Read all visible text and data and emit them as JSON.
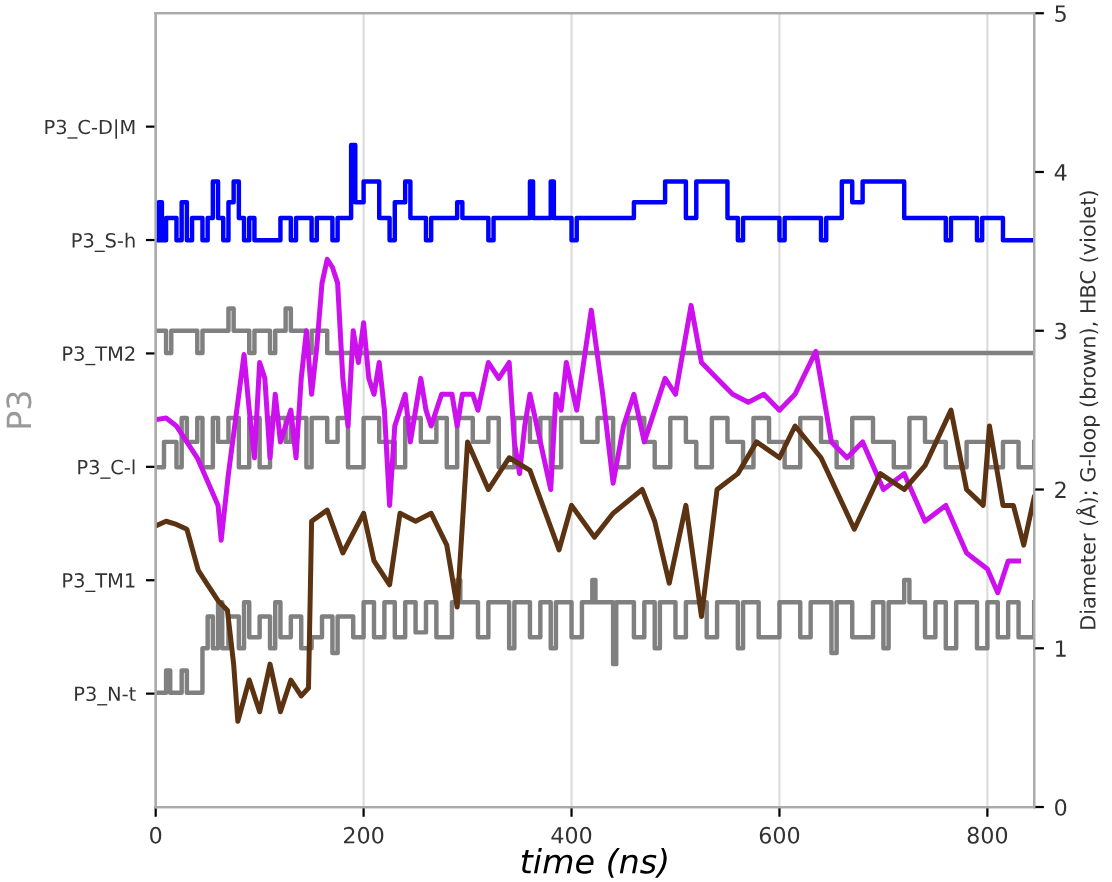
{
  "chart_data": {
    "type": "line",
    "xlabel": "time (ns)",
    "ylabel": "P3",
    "y2label": "Diameter (Å); G-loop (brown), HBC (violet)",
    "xlim": [
      0,
      845
    ],
    "xticks": [
      0,
      200,
      400,
      600,
      800
    ],
    "annotations": [
      "P3_N-t",
      "P3_TM1",
      "P3_C-l",
      "P3_TM2",
      "P3_S-h",
      "P3_C-D|M"
    ],
    "y2lim": [
      0,
      5
    ],
    "y2ticks": [
      0,
      1,
      2,
      3,
      4,
      5
    ],
    "grid": "x",
    "legend": false,
    "series": [
      {
        "type": "step",
        "axis": "y2",
        "color": "#808080",
        "x": [
          0,
          10,
          14,
          25,
          30,
          45,
          50,
          55,
          60,
          64,
          70,
          80,
          85,
          90,
          100,
          110,
          115,
          120,
          130,
          140,
          150,
          160,
          170,
          175,
          190,
          200,
          210,
          220,
          230,
          240,
          250,
          260,
          270,
          285,
          290,
          293,
          310,
          320,
          340,
          345,
          360,
          370,
          380,
          385,
          400,
          410,
          420,
          423,
          440,
          443,
          460,
          470,
          480,
          485,
          500,
          510,
          530,
          540,
          560,
          565,
          580,
          600,
          620,
          630,
          650,
          655,
          670,
          690,
          700,
          705,
          720,
          725,
          740,
          750,
          760,
          770,
          790,
          800,
          810,
          820,
          830,
          845
        ],
        "values": [
          0.72,
          0.86,
          0.72,
          0.86,
          0.72,
          1.0,
          1.2,
          1.0,
          1.29,
          1.0,
          1.2,
          1.0,
          1.29,
          1.07,
          1.2,
          1.0,
          1.29,
          1.07,
          1.2,
          1.0,
          1.07,
          1.2,
          0.97,
          1.2,
          1.07,
          1.29,
          1.07,
          1.29,
          1.07,
          1.29,
          1.1,
          1.29,
          1.07,
          1.29,
          1.43,
          1.29,
          1.07,
          1.29,
          1.0,
          1.29,
          1.07,
          1.29,
          1.0,
          1.29,
          1.07,
          1.29,
          1.43,
          1.29,
          0.9,
          1.29,
          1.07,
          1.29,
          1.0,
          1.29,
          1.07,
          1.29,
          1.07,
          1.29,
          1.0,
          1.29,
          1.07,
          1.29,
          1.07,
          1.29,
          0.97,
          1.29,
          1.07,
          1.29,
          1.0,
          1.29,
          1.43,
          1.29,
          1.07,
          1.29,
          1.0,
          1.29,
          1.0,
          1.29,
          1.07,
          1.29,
          1.07,
          1.29
        ]
      },
      {
        "type": "step",
        "axis": "y2",
        "color": "#808080",
        "x": [
          0,
          8,
          20,
          25,
          30,
          40,
          45,
          55,
          60,
          70,
          80,
          90,
          100,
          110,
          125,
          130,
          145,
          150,
          165,
          175,
          185,
          200,
          215,
          230,
          240,
          255,
          270,
          280,
          290,
          305,
          320,
          330,
          345,
          360,
          370,
          380,
          390,
          410,
          425,
          440,
          455,
          470,
          480,
          495,
          510,
          520,
          535,
          550,
          565,
          575,
          590,
          605,
          620,
          640,
          655,
          670,
          690,
          710,
          725,
          740,
          760,
          780,
          800,
          815,
          830,
          845
        ],
        "values": [
          2.14,
          2.3,
          2.14,
          2.45,
          2.3,
          2.45,
          2.14,
          2.45,
          2.3,
          2.45,
          2.14,
          2.45,
          2.14,
          2.45,
          2.3,
          2.45,
          2.14,
          2.45,
          2.3,
          2.45,
          2.14,
          2.45,
          2.3,
          2.14,
          2.45,
          2.3,
          2.45,
          2.14,
          2.45,
          2.3,
          2.45,
          2.14,
          2.45,
          2.3,
          2.45,
          2.14,
          2.45,
          2.3,
          2.45,
          2.14,
          2.45,
          2.3,
          2.14,
          2.45,
          2.3,
          2.14,
          2.45,
          2.3,
          2.14,
          2.45,
          2.3,
          2.14,
          2.45,
          2.3,
          2.14,
          2.45,
          2.3,
          2.14,
          2.45,
          2.3,
          2.14,
          2.3,
          2.14,
          2.3,
          2.14,
          2.3
        ]
      },
      {
        "type": "step",
        "axis": "y2",
        "color": "#808080",
        "x": [
          0,
          10,
          15,
          40,
          45,
          70,
          75,
          90,
          95,
          110,
          115,
          125,
          130,
          145,
          150,
          165,
          845
        ],
        "values": [
          3.0,
          2.86,
          3.0,
          2.86,
          3.0,
          3.14,
          3.0,
          2.86,
          3.0,
          2.86,
          3.0,
          3.14,
          3.0,
          2.86,
          3.0,
          2.86,
          2.86
        ]
      },
      {
        "type": "step",
        "axis": "y2",
        "color": "#0000ff",
        "x": [
          0,
          3,
          6,
          10,
          20,
          25,
          30,
          35,
          45,
          50,
          55,
          60,
          65,
          70,
          75,
          80,
          85,
          90,
          95,
          120,
          130,
          135,
          150,
          155,
          170,
          175,
          188,
          192,
          200,
          215,
          225,
          230,
          240,
          245,
          260,
          265,
          290,
          295,
          320,
          325,
          360,
          363,
          380,
          383,
          400,
          405,
          460,
          490,
          510,
          520,
          550,
          560,
          565,
          600,
          605,
          640,
          645,
          660,
          670,
          680,
          720,
          760,
          765,
          790,
          795,
          815,
          845
        ],
        "values": [
          3.57,
          3.81,
          3.57,
          3.71,
          3.57,
          3.81,
          3.57,
          3.71,
          3.57,
          3.71,
          3.94,
          3.71,
          3.57,
          3.81,
          3.94,
          3.71,
          3.57,
          3.71,
          3.57,
          3.71,
          3.57,
          3.71,
          3.57,
          3.71,
          3.57,
          3.71,
          4.17,
          3.81,
          3.94,
          3.71,
          3.57,
          3.81,
          3.94,
          3.71,
          3.57,
          3.71,
          3.81,
          3.71,
          3.57,
          3.71,
          3.94,
          3.71,
          3.94,
          3.71,
          3.57,
          3.71,
          3.81,
          3.94,
          3.71,
          3.94,
          3.71,
          3.57,
          3.71,
          3.57,
          3.71,
          3.57,
          3.71,
          3.94,
          3.81,
          3.94,
          3.71,
          3.57,
          3.71,
          3.57,
          3.71,
          3.57,
          3.57
        ]
      },
      {
        "axis": "y2",
        "color": "#cc11ee",
        "x": [
          0,
          10,
          20,
          30,
          40,
          50,
          60,
          63,
          70,
          80,
          85,
          90,
          95,
          100,
          105,
          110,
          115,
          120,
          130,
          135,
          140,
          145,
          150,
          155,
          160,
          165,
          170,
          175,
          180,
          185,
          190,
          195,
          200,
          205,
          210,
          215,
          220,
          225,
          230,
          240,
          245,
          255,
          260,
          265,
          275,
          285,
          290,
          295,
          305,
          310,
          320,
          330,
          340,
          345,
          350,
          355,
          360,
          370,
          380,
          385,
          390,
          395,
          405,
          419,
          430,
          440,
          450,
          460,
          470,
          480,
          490,
          500,
          515,
          525,
          540,
          555,
          570,
          585,
          600,
          615,
          635,
          650,
          665,
          680,
          700,
          720,
          740,
          760,
          780,
          800,
          810,
          820,
          830
        ],
        "values": [
          2.44,
          2.45,
          2.4,
          2.3,
          2.2,
          2.05,
          1.9,
          1.68,
          2.1,
          2.6,
          2.85,
          2.5,
          2.2,
          2.8,
          2.7,
          2.2,
          2.6,
          2.3,
          2.5,
          2.2,
          2.7,
          3.0,
          2.6,
          2.9,
          3.3,
          3.45,
          3.4,
          3.3,
          2.7,
          2.4,
          3.0,
          2.8,
          3.05,
          2.7,
          2.6,
          2.8,
          2.5,
          1.9,
          2.4,
          2.6,
          2.3,
          2.7,
          2.5,
          2.4,
          2.6,
          2.6,
          2.4,
          2.6,
          2.6,
          2.5,
          2.8,
          2.7,
          2.8,
          2.3,
          2.1,
          2.4,
          2.6,
          2.3,
          2.0,
          2.6,
          2.5,
          2.8,
          2.5,
          3.13,
          2.6,
          2.04,
          2.4,
          2.6,
          2.3,
          2.5,
          2.7,
          2.6,
          3.16,
          2.8,
          2.7,
          2.6,
          2.55,
          2.6,
          2.5,
          2.6,
          2.87,
          2.3,
          2.2,
          2.3,
          2.0,
          2.1,
          1.8,
          1.9,
          1.6,
          1.5,
          1.35,
          1.55,
          1.55
        ]
      },
      {
        "axis": "y2",
        "color": "#5c3312",
        "x": [
          0,
          10,
          20,
          30,
          41,
          50,
          60,
          69,
          75,
          79,
          90,
          100,
          110,
          120,
          130,
          140,
          147,
          150,
          165,
          180,
          200,
          210,
          225,
          235,
          250,
          265,
          280,
          290,
          300,
          320,
          340,
          360,
          388,
          400,
          422,
          440,
          468,
          480,
          494,
          510,
          525,
          540,
          560,
          578,
          600,
          615,
          640,
          672,
          697,
          720,
          740,
          765,
          780,
          796,
          802,
          815,
          825,
          835,
          845
        ],
        "values": [
          1.77,
          1.8,
          1.78,
          1.75,
          1.49,
          1.4,
          1.3,
          1.24,
          0.9,
          0.54,
          0.8,
          0.6,
          0.9,
          0.6,
          0.8,
          0.7,
          0.75,
          1.8,
          1.87,
          1.6,
          1.85,
          1.55,
          1.4,
          1.85,
          1.8,
          1.85,
          1.65,
          1.26,
          2.3,
          2.0,
          2.2,
          2.12,
          1.62,
          1.9,
          1.7,
          1.85,
          2.0,
          1.8,
          1.41,
          1.9,
          1.2,
          2.0,
          2.1,
          2.3,
          2.2,
          2.4,
          2.2,
          1.75,
          2.1,
          2.0,
          2.15,
          2.5,
          2.0,
          1.9,
          2.4,
          1.9,
          1.9,
          1.65,
          1.95
        ]
      }
    ]
  }
}
